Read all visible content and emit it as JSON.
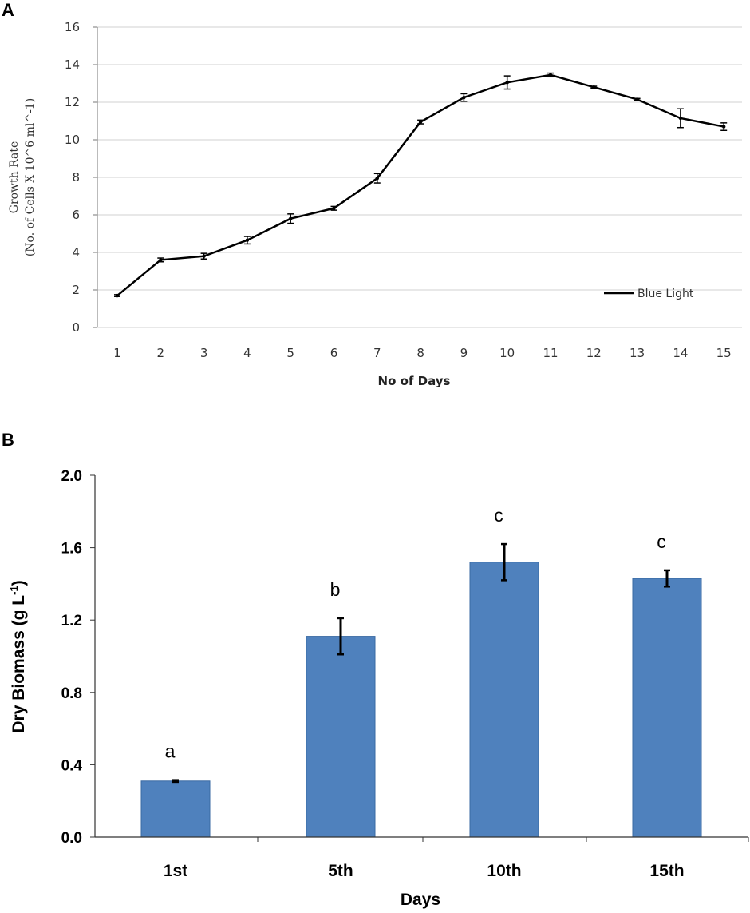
{
  "chart_data": [
    {
      "panel": "A",
      "type": "line",
      "title": "",
      "xlabel": "No of Days",
      "ylabel_line1": "Growth Rate",
      "ylabel_line2": "(No. of Cells X 10^6 ml^-1)",
      "ylim": [
        0,
        16
      ],
      "yticks": [
        "0",
        "2",
        "4",
        "6",
        "8",
        "10",
        "12",
        "14",
        "16"
      ],
      "x": [
        "1",
        "2",
        "3",
        "4",
        "5",
        "6",
        "7",
        "8",
        "9",
        "10",
        "11",
        "12",
        "13",
        "14",
        "15"
      ],
      "grid": true,
      "legend_position": "bottom-right",
      "series": [
        {
          "name": "Blue Light",
          "values": [
            1.7,
            3.6,
            3.8,
            4.65,
            5.8,
            6.35,
            7.95,
            10.95,
            12.25,
            13.05,
            13.45,
            12.8,
            12.15,
            11.15,
            10.7
          ],
          "errors": [
            0.05,
            0.1,
            0.15,
            0.2,
            0.25,
            0.1,
            0.25,
            0.1,
            0.2,
            0.35,
            0.1,
            0.05,
            0.05,
            0.5,
            0.2
          ],
          "color": "#000000"
        }
      ]
    },
    {
      "panel": "B",
      "type": "bar",
      "title": "",
      "xlabel": "Days",
      "ylabel": "Dry Biomass (g L-1)",
      "ylim": [
        0,
        2.0
      ],
      "yticks": [
        "0.0",
        "0.4",
        "0.8",
        "1.2",
        "1.6",
        "2.0"
      ],
      "categories": [
        "1st",
        "5th",
        "10th",
        "15th"
      ],
      "values": [
        0.31,
        1.11,
        1.52,
        1.43
      ],
      "errors": [
        0.005,
        0.1,
        0.1,
        0.045
      ],
      "significance": [
        "a",
        "b",
        "c",
        "c"
      ],
      "color": "#4f81bd"
    }
  ]
}
